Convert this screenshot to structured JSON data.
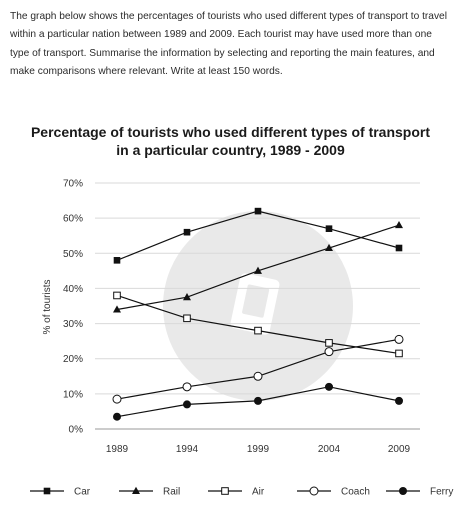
{
  "prompt": {
    "text": "The graph below shows the percentages of tourists who used different types of transport to travel within a particular nation between 1989 and 2009. Each tourist may have used more than one type of transport. Summarise the information by selecting and reporting the main features, and make comparisons where relevant. Write at least 150 words."
  },
  "chart_data": {
    "type": "line",
    "title_line1": "Percentage of tourists who used different types of transport",
    "title_line2": "in a particular country, 1989 - 2009",
    "xlabel": "",
    "ylabel": "% of tourists",
    "x": [
      "1989",
      "1994",
      "1999",
      "2004",
      "2009"
    ],
    "ylim": [
      0,
      70
    ],
    "yticks": [
      "0%",
      "10%",
      "20%",
      "30%",
      "40%",
      "50%",
      "60%",
      "70%"
    ],
    "grid": "horizontal",
    "legend_position": "bottom",
    "series": [
      {
        "name": "Car",
        "marker": "filled-square",
        "values": [
          48,
          56,
          62,
          57,
          51.5
        ]
      },
      {
        "name": "Rail",
        "marker": "filled-triangle",
        "values": [
          34,
          37.5,
          45,
          51.5,
          58
        ]
      },
      {
        "name": "Air",
        "marker": "open-square",
        "values": [
          38,
          31.5,
          28,
          24.5,
          21.5
        ]
      },
      {
        "name": "Coach",
        "marker": "open-circle",
        "values": [
          8.5,
          12,
          15,
          22,
          25.5
        ]
      },
      {
        "name": "Ferry",
        "marker": "filled-circle",
        "values": [
          3.5,
          7,
          8,
          12,
          8
        ]
      }
    ],
    "line_color": "#111111",
    "grid_color": "#d9d9d9",
    "watermark_color": "#e9e9e9"
  }
}
